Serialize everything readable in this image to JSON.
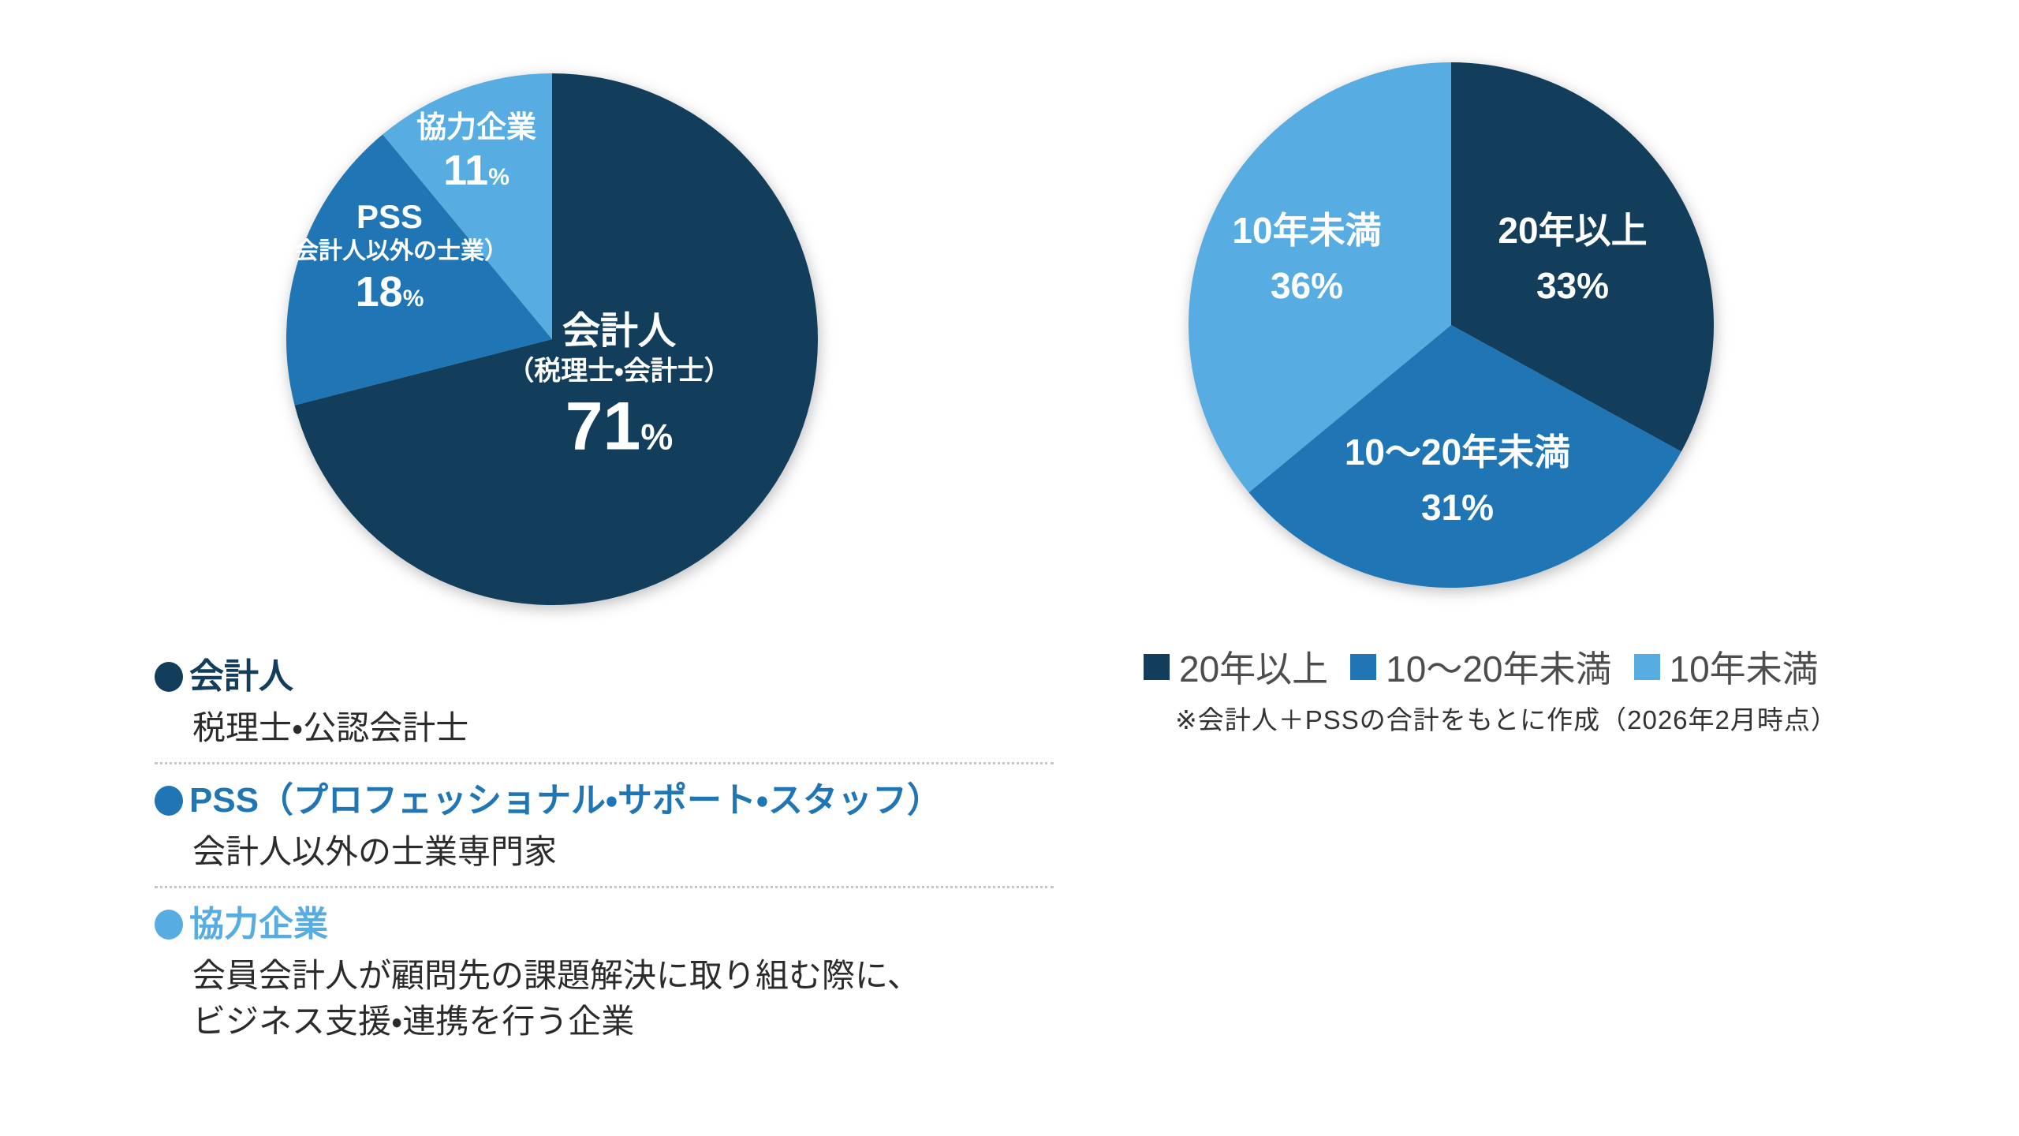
{
  "page": {
    "background": "#ffffff"
  },
  "palette": {
    "dark_navy": "#123D5B",
    "medium_blue": "#2076B5",
    "light_blue": "#57ACE2",
    "definition_text": "#2b2b2b",
    "legend_text_gray": "#4d4d4d",
    "note_text": "#333333",
    "pie_label_white": "#ffffff"
  },
  "chart_data": [
    {
      "type": "pie",
      "categories": [
        "会計人（税理士・会計士）",
        "PSS（会計人以外の士業）",
        "協力企業"
      ],
      "values": [
        71,
        18,
        11
      ],
      "unit": "%",
      "colors": [
        "#123D5B",
        "#2076B5",
        "#57ACE2"
      ],
      "start_angle_deg": 0,
      "direction": "clockwise",
      "labels_inside": true
    },
    {
      "type": "pie",
      "categories": [
        "20年以上",
        "10〜20年未満",
        "10年未満"
      ],
      "values": [
        33,
        31,
        36
      ],
      "unit": "%",
      "colors": [
        "#123D5B",
        "#2076B5",
        "#57ACE2"
      ],
      "start_angle_deg": 0,
      "direction": "clockwise",
      "labels_inside": true,
      "legend_position": "bottom",
      "note": "※会計人＋PSSの合計をもとに作成（2026年2月時点）"
    }
  ],
  "left_pie_labels": {
    "main": {
      "line1": "会計人",
      "line2": "（税理士・会計士）",
      "value": "71",
      "pct": "%"
    },
    "pss": {
      "line1": "PSS",
      "line2": "（会計人以外の士業）",
      "value": "18",
      "pct": "%"
    },
    "partner": {
      "line1": "協力企業",
      "value": "11",
      "pct": "%"
    }
  },
  "right_pie_labels": {
    "over20": {
      "line1": "20年以上",
      "line2": "33%"
    },
    "between10_20": {
      "line1": "10〜20年未満",
      "line2": "31%"
    },
    "under10": {
      "line1": "10年未満",
      "line2": "36%"
    }
  },
  "right_legend": {
    "items": [
      {
        "label": "20年以上",
        "color": "#123D5B"
      },
      {
        "label": "10〜20年未満",
        "color": "#2076B5"
      },
      {
        "label": "10年未満",
        "color": "#57ACE2"
      }
    ],
    "note": "※会計人＋PSSの合計をもとに作成（2026年2月時点）"
  },
  "definitions": {
    "items": [
      {
        "term": "会計人",
        "color": "#123D5B",
        "desc": [
          "税理士・公認会計士"
        ]
      },
      {
        "term": "PSS（プロフェッショナル・サポート・スタッフ）",
        "color": "#2076B5",
        "desc": [
          "会計人以外の士業専門家"
        ]
      },
      {
        "term": "協力企業",
        "color": "#57ACE2",
        "desc": [
          "会員会計人が顧問先の課題解決に取り組む際に、",
          "ビジネス支援・連携を行う企業"
        ]
      }
    ]
  }
}
